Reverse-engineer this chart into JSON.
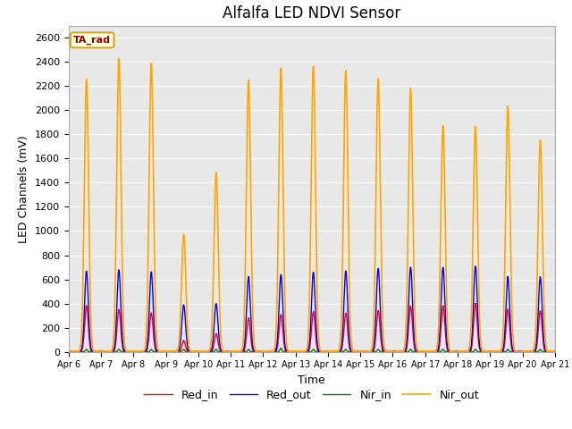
{
  "title": "Alfalfa LED NDVI Sensor",
  "xlabel": "Time",
  "ylabel": "LED Channels (mV)",
  "legend_label": "TA_rad",
  "series_labels": [
    "Red_in",
    "Red_out",
    "Nir_in",
    "Nir_out"
  ],
  "series_colors": [
    "red",
    "blue",
    "green",
    "orange"
  ],
  "ylim": [
    0,
    2700
  ],
  "yticks": [
    0,
    200,
    400,
    600,
    800,
    1000,
    1200,
    1400,
    1600,
    1800,
    2000,
    2200,
    2400,
    2600
  ],
  "plot_bg_color": "#e8e8e8",
  "day_start": 6,
  "nir_out_amps": [
    2260,
    2430,
    2390,
    970,
    1480,
    2250,
    2350,
    2360,
    2330,
    2260,
    2180,
    1870,
    1870,
    2030,
    1750
  ],
  "red_out_amps": [
    670,
    680,
    660,
    390,
    400,
    620,
    640,
    660,
    670,
    690,
    700,
    700,
    710,
    620,
    620
  ],
  "red_in_amps": [
    380,
    350,
    320,
    90,
    150,
    280,
    310,
    330,
    320,
    340,
    380,
    380,
    400,
    350,
    340
  ],
  "nir_in_amps": [
    20,
    20,
    20,
    20,
    20,
    20,
    30,
    20,
    20,
    20,
    20,
    20,
    20,
    20,
    20
  ],
  "day_centers": [
    0.55,
    1.55,
    2.55,
    3.55,
    4.55,
    5.55,
    6.55,
    7.55,
    8.55,
    9.55,
    10.55,
    11.55,
    12.55,
    13.55,
    14.55
  ],
  "pulse_sigma": 0.06,
  "n_points": 3000,
  "figsize": [
    6.4,
    4.8
  ],
  "dpi": 100
}
